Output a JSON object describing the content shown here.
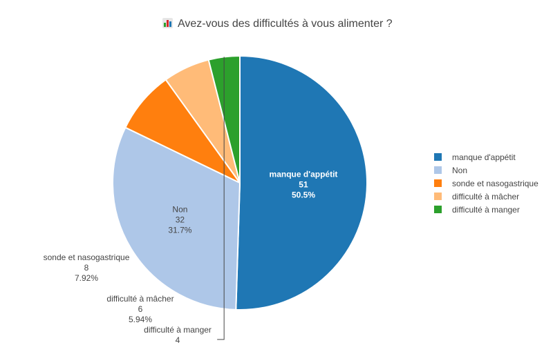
{
  "chart_data": {
    "type": "pie",
    "title": "Avez-vous des difficultés à vous alimenter ?",
    "title_icon": "bar-chart-icon",
    "slices": [
      {
        "label": "manque d'appétit",
        "value": 51,
        "percent": "50.5%",
        "color": "#1f77b4"
      },
      {
        "label": "Non",
        "value": 32,
        "percent": "31.7%",
        "color": "#aec7e8"
      },
      {
        "label": "sonde et nasogastrique",
        "value": 8,
        "percent": "7.92%",
        "color": "#ff7f0e"
      },
      {
        "label": "difficulté à mâcher",
        "value": 6,
        "percent": "5.94%",
        "color": "#ffbb78"
      },
      {
        "label": "difficulté à manger",
        "value": 4,
        "percent": "",
        "color": "#2ca02c"
      }
    ],
    "legend_position": "right",
    "direction": "clockwise",
    "start_angle": "top"
  }
}
